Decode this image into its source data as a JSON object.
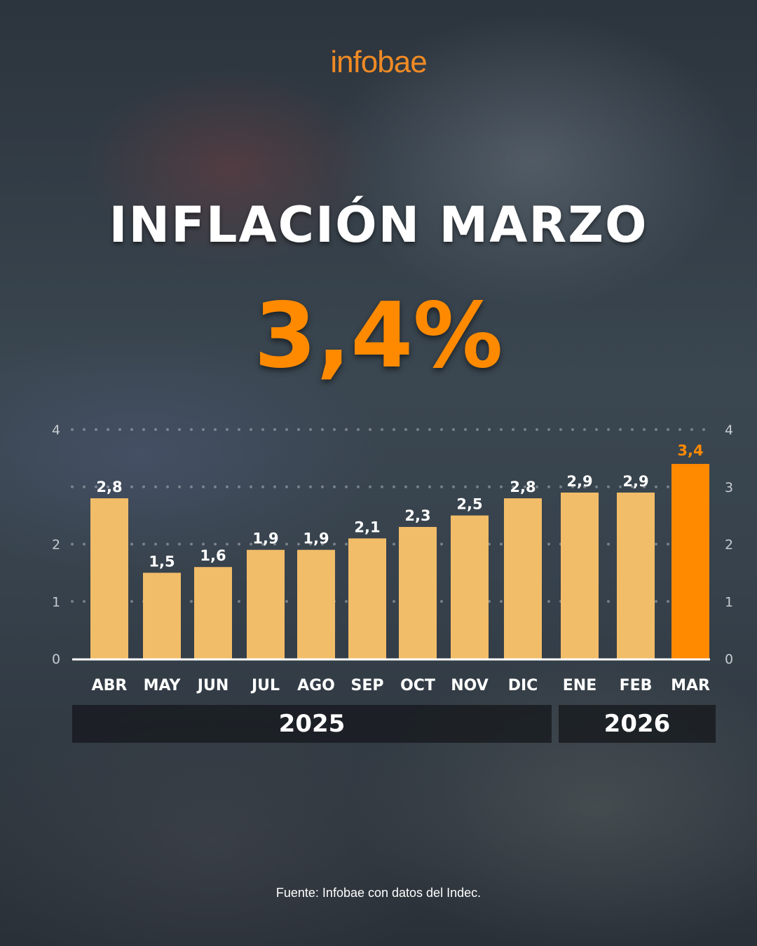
{
  "header": {
    "logo": "infobae",
    "title": "INFLACIÓN MARZO",
    "headline_value": "3,4%"
  },
  "chart_data": {
    "type": "bar",
    "categories": [
      "ABR",
      "MAY",
      "JUN",
      "JUL",
      "AGO",
      "SEP",
      "OCT",
      "NOV",
      "DIC",
      "ENE",
      "FEB",
      "MAR"
    ],
    "values": [
      2.8,
      1.5,
      1.6,
      1.9,
      1.9,
      2.1,
      2.3,
      2.5,
      2.8,
      2.9,
      2.9,
      3.4
    ],
    "labels": [
      "2,8",
      "1,5",
      "1,6",
      "1,9",
      "1,9",
      "2,1",
      "2,3",
      "2,5",
      "2,8",
      "2,9",
      "2,9",
      "3,4"
    ],
    "ylim": [
      0,
      4
    ],
    "left_ticks": [
      "0",
      "1",
      "2",
      "4"
    ],
    "right_ticks": [
      "0",
      "1",
      "2",
      "3",
      "4"
    ],
    "grid": true,
    "year_groups": [
      {
        "label": "2025",
        "count": 9
      },
      {
        "label": "2026",
        "count": 3
      }
    ],
    "colors": {
      "bar": "#f2bd69",
      "highlight": "#ff8a00",
      "highlight_index": 11
    }
  },
  "footer": {
    "source": "Fuente: Infobae con datos del Indec."
  }
}
